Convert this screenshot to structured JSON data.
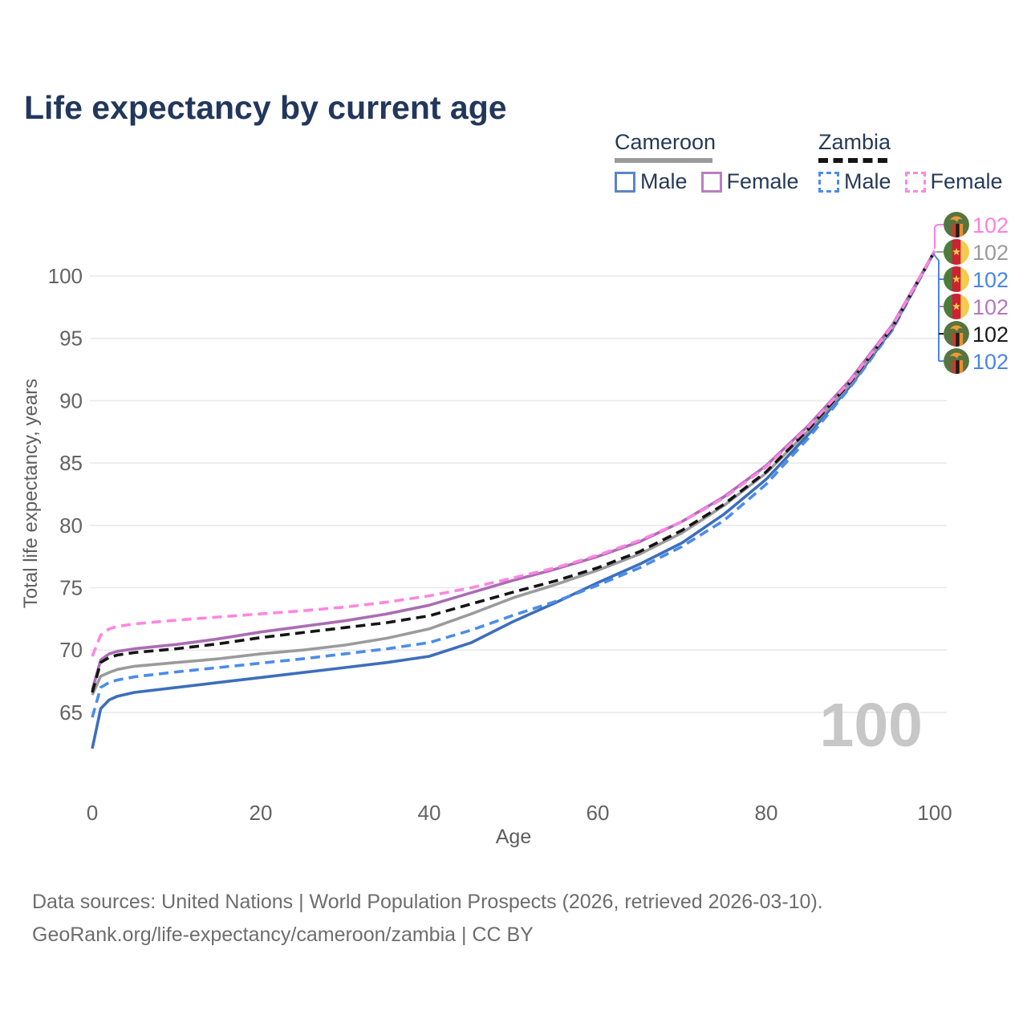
{
  "title": "Life expectancy by current age",
  "legend": {
    "groups": [
      {
        "label": "Cameroon",
        "line_style": "solid",
        "underline_color": "#9a9a9a",
        "items": [
          {
            "label": "Male",
            "color": "#5b85c7",
            "dashed": false
          },
          {
            "label": "Female",
            "color": "#b87fc0",
            "dashed": false
          }
        ]
      },
      {
        "label": "Zambia",
        "line_style": "dashed",
        "underline_color": "#141414",
        "items": [
          {
            "label": "Male",
            "color": "#4a8cf0",
            "dashed": true
          },
          {
            "label": "Female",
            "color": "#ff85e2",
            "dashed": true
          }
        ]
      }
    ]
  },
  "watermark_age": "100",
  "footer": {
    "line1": "Data sources: United Nations | World Population Prospects (2026, retrieved 2026-03-10).",
    "line2": "GeoRank.org/life-expectancy/cameroon/zambia | CC BY"
  },
  "chart_data": {
    "type": "line",
    "title": "Life expectancy by current age",
    "xlabel": "Age",
    "ylabel": "Total life expectancy, years",
    "xlim": [
      0,
      100
    ],
    "ylim": [
      62,
      103
    ],
    "xticks": [
      0,
      20,
      40,
      60,
      80,
      100
    ],
    "yticks": [
      65,
      70,
      75,
      80,
      85,
      90,
      95,
      100
    ],
    "grid": "horizontal",
    "legend_position": "top-right",
    "x": [
      0,
      1,
      2,
      3,
      5,
      10,
      15,
      20,
      25,
      30,
      35,
      40,
      45,
      50,
      55,
      60,
      65,
      70,
      75,
      80,
      85,
      90,
      95,
      100
    ],
    "series": [
      {
        "id": "cameroon_male",
        "name": "Cameroon Male",
        "color": "#3d6ebc",
        "dashed": false,
        "values": [
          62.1,
          65.3,
          66.0,
          66.3,
          66.6,
          67.0,
          67.4,
          67.8,
          68.2,
          68.6,
          69.0,
          69.5,
          70.6,
          72.3,
          73.8,
          75.4,
          76.9,
          78.6,
          80.9,
          83.7,
          87.3,
          91.2,
          95.8,
          102
        ]
      },
      {
        "id": "zambia_male",
        "name": "Zambia Male",
        "color": "#4a8cec",
        "dashed": true,
        "values": [
          64.6,
          67.0,
          67.4,
          67.6,
          67.85,
          68.25,
          68.6,
          68.95,
          69.3,
          69.7,
          70.1,
          70.6,
          71.6,
          72.8,
          73.9,
          75.2,
          76.6,
          78.3,
          80.4,
          83.3,
          87.0,
          91.1,
          95.7,
          102
        ]
      },
      {
        "id": "cameroon_total",
        "name": "Cameroon",
        "color": "#9b9b9b",
        "dashed": false,
        "values": [
          66.4,
          67.9,
          68.2,
          68.45,
          68.7,
          69.0,
          69.3,
          69.7,
          70.0,
          70.4,
          70.95,
          71.7,
          72.9,
          74.2,
          75.25,
          76.4,
          77.7,
          79.4,
          81.6,
          84.2,
          87.6,
          91.4,
          95.9,
          102
        ]
      },
      {
        "id": "cameroon_female",
        "name": "Cameroon Female",
        "color": "#ab6cb3",
        "dashed": false,
        "values": [
          66.8,
          69.2,
          69.7,
          69.9,
          70.1,
          70.45,
          70.9,
          71.45,
          71.9,
          72.35,
          72.9,
          73.6,
          74.6,
          75.6,
          76.5,
          77.5,
          78.7,
          80.3,
          82.3,
          84.8,
          88.0,
          91.7,
          96.1,
          102
        ]
      },
      {
        "id": "zambia_total",
        "name": "Zambia",
        "color": "#141414",
        "dashed": true,
        "values": [
          66.6,
          69.0,
          69.4,
          69.6,
          69.8,
          70.1,
          70.5,
          71.0,
          71.4,
          71.8,
          72.2,
          72.75,
          73.7,
          74.65,
          75.55,
          76.6,
          77.9,
          79.6,
          81.7,
          84.3,
          87.7,
          91.5,
          95.9,
          102
        ]
      },
      {
        "id": "zambia_female",
        "name": "Zambia Female",
        "color": "#ff85e2",
        "dashed": true,
        "values": [
          69.5,
          71.2,
          71.7,
          71.9,
          72.1,
          72.4,
          72.65,
          72.9,
          73.15,
          73.45,
          73.85,
          74.35,
          75.0,
          75.8,
          76.6,
          77.6,
          78.8,
          80.3,
          82.2,
          84.7,
          87.9,
          91.6,
          96.0,
          102
        ]
      }
    ],
    "end_labels": [
      {
        "series": "zambia_female",
        "flag": "zambia",
        "value": "102",
        "color": "#ff7ee0"
      },
      {
        "series": "cameroon_total",
        "flag": "cameroon",
        "value": "102",
        "color": "#9b9b9b"
      },
      {
        "series": "cameroon_male",
        "flag": "cameroon",
        "value": "102",
        "color": "#4a86e8"
      },
      {
        "series": "cameroon_female",
        "flag": "cameroon",
        "value": "102",
        "color": "#b478bc"
      },
      {
        "series": "zambia_total",
        "flag": "zambia",
        "value": "102",
        "color": "#1a1a1a"
      },
      {
        "series": "zambia_male",
        "flag": "zambia",
        "value": "102",
        "color": "#4a86e8"
      }
    ]
  }
}
